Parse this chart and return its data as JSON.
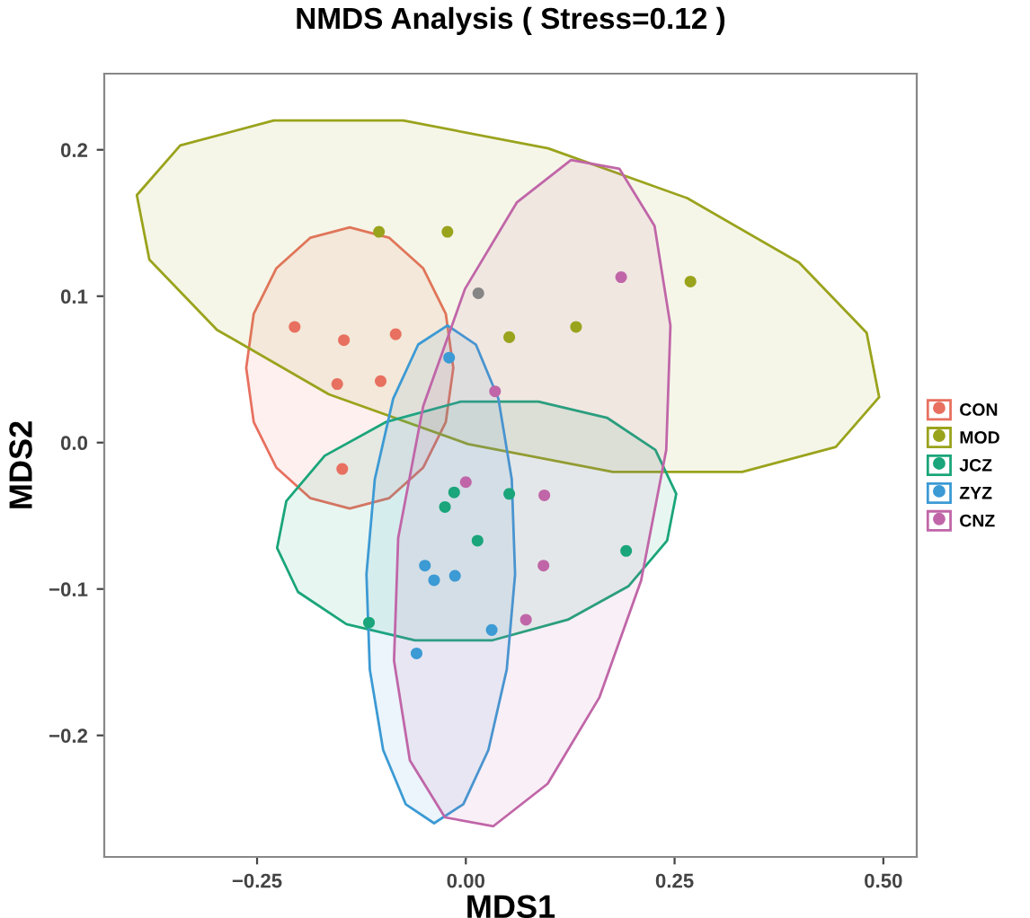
{
  "chart_data": {
    "type": "scatter",
    "title": "NMDS Analysis ( Stress=0.12 )",
    "xlabel": "MDS1",
    "ylabel": "MDS2",
    "xlim": [
      -0.433,
      0.54
    ],
    "ylim": [
      -0.283,
      0.252
    ],
    "xticks": [
      {
        "value": -0.25,
        "label": "−0.25"
      },
      {
        "value": 0,
        "label": "0.00"
      },
      {
        "value": 0.25,
        "label": "0.25"
      },
      {
        "value": 0.5,
        "label": "0.50"
      }
    ],
    "yticks": [
      {
        "value": -0.2,
        "label": "−0.2"
      },
      {
        "value": -0.1,
        "label": "−0.1"
      },
      {
        "value": 0,
        "label": "0.0"
      },
      {
        "value": 0.1,
        "label": "0.1"
      },
      {
        "value": 0.2,
        "label": "0.2"
      }
    ],
    "grid": false,
    "legend": "right",
    "marker": "circle",
    "series": [
      {
        "type": "area",
        "marker": "none",
        "color": "#e87060",
        "x": [
          -0.015,
          -0.024,
          -0.051,
          -0.092,
          -0.139,
          -0.186,
          -0.227,
          -0.254,
          -0.263,
          -0.254,
          -0.227,
          -0.186,
          -0.139,
          -0.092,
          -0.051,
          -0.024
        ],
        "values": [
          0.051,
          0.088,
          0.119,
          0.14,
          0.147,
          0.14,
          0.119,
          0.088,
          0.051,
          0.014,
          -0.017,
          -0.038,
          -0.045,
          -0.038,
          -0.017,
          0.014
        ]
      },
      {
        "type": "area",
        "marker": "none",
        "color": "#9aa31c",
        "x": [
          0.495,
          0.48,
          0.399,
          0.265,
          0.0985,
          -0.075,
          -0.23,
          -0.342,
          -0.394,
          -0.379,
          -0.298,
          -0.164,
          0.0025,
          0.176,
          0.331,
          0.443
        ],
        "values": [
          0.031,
          0.075,
          0.123,
          0.167,
          0.201,
          0.22,
          0.22,
          0.203,
          0.169,
          0.125,
          0.077,
          0.033,
          -0.001,
          -0.02,
          -0.02,
          -0.003
        ]
      },
      {
        "type": "area",
        "marker": "none",
        "color": "#1aa57a",
        "x": [
          0.252,
          0.227,
          0.169,
          0.087,
          -0.006,
          -0.096,
          -0.169,
          -0.215,
          -0.226,
          -0.201,
          -0.143,
          -0.061,
          0.032,
          0.122,
          0.195,
          0.241
        ],
        "values": [
          -0.035,
          -0.005,
          0.017,
          0.028,
          0.028,
          0.014,
          -0.009,
          -0.04,
          -0.072,
          -0.102,
          -0.124,
          -0.135,
          -0.135,
          -0.121,
          -0.098,
          -0.067
        ]
      },
      {
        "type": "area",
        "marker": "none",
        "color": "#3c9ad4",
        "x": [
          -0.022,
          0.012,
          0.039,
          0.055,
          0.059,
          0.049,
          0.027,
          -0.003,
          -0.038,
          -0.072,
          -0.099,
          -0.115,
          -0.119,
          -0.109,
          -0.087,
          -0.057
        ],
        "values": [
          0.08,
          0.067,
          0.03,
          -0.025,
          -0.09,
          -0.155,
          -0.21,
          -0.247,
          -0.26,
          -0.247,
          -0.21,
          -0.155,
          -0.09,
          -0.025,
          0.03,
          0.067
        ]
      },
      {
        "type": "area",
        "marker": "none",
        "color": "#c066a8",
        "x": [
          0.126,
          0.184,
          0.226,
          0.245,
          0.24,
          0.21,
          0.16,
          0.098,
          0.033,
          -0.025,
          -0.067,
          -0.086,
          -0.081,
          -0.051,
          -0.001,
          0.061
        ],
        "values": [
          0.193,
          0.187,
          0.148,
          0.08,
          -0.005,
          -0.094,
          -0.174,
          -0.233,
          -0.262,
          -0.256,
          -0.217,
          -0.149,
          -0.065,
          0.025,
          0.105,
          0.164
        ]
      },
      {
        "name": "CON",
        "color": "#e87060",
        "x": [
          -0.205,
          -0.146,
          -0.084,
          -0.154,
          -0.102,
          -0.148
        ],
        "values": [
          0.079,
          0.07,
          0.074,
          0.04,
          0.042,
          -0.018
        ]
      },
      {
        "name": "MOD",
        "color": "#9aa31c",
        "colors": [
          "#9aa31c",
          "#9aa31c",
          "#858585",
          "#9aa31c",
          "#9aa31c",
          "#9aa31c"
        ],
        "x": [
          -0.104,
          -0.022,
          0.015,
          0.052,
          0.132,
          0.269
        ],
        "values": [
          0.144,
          0.144,
          0.102,
          0.072,
          0.079,
          0.11
        ]
      },
      {
        "name": "JCZ",
        "color": "#1aa57a",
        "x": [
          -0.014,
          -0.025,
          0.052,
          0.014,
          0.192,
          -0.116
        ],
        "values": [
          -0.034,
          -0.044,
          -0.035,
          -0.067,
          -0.074,
          -0.123
        ]
      },
      {
        "name": "ZYZ",
        "color": "#3c9ad4",
        "x": [
          -0.02,
          -0.049,
          -0.038,
          -0.013,
          0.031,
          -0.059
        ],
        "values": [
          0.058,
          -0.084,
          -0.094,
          -0.091,
          -0.128,
          -0.144
        ]
      },
      {
        "name": "CNZ",
        "color": "#c066a8",
        "x": [
          0.186,
          0.035,
          0.0,
          0.094,
          0.093,
          0.072
        ],
        "values": [
          0.113,
          0.035,
          -0.027,
          -0.036,
          -0.084,
          -0.121
        ]
      }
    ]
  }
}
